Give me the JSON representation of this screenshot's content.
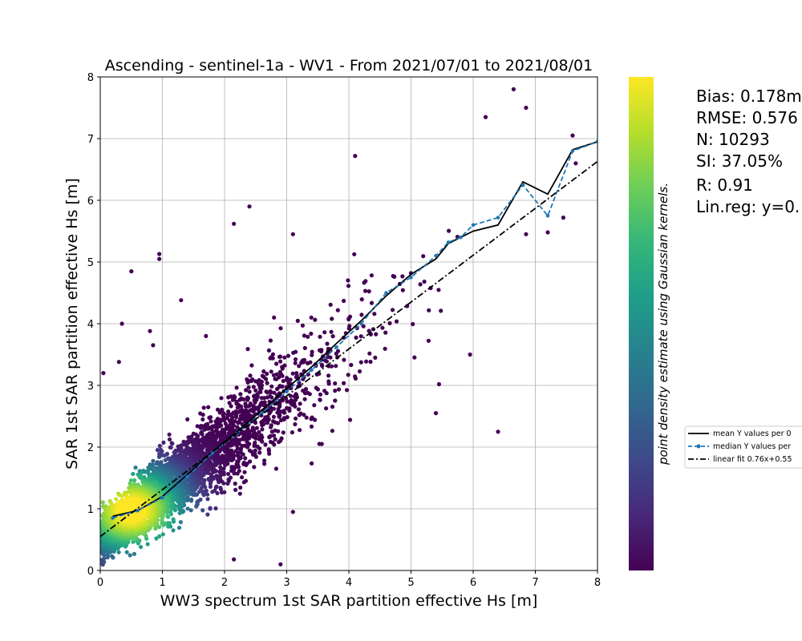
{
  "chart_data": {
    "type": "scatter",
    "title": "Ascending - sentinel-1a - WV1 - From 2021/07/01 to 2021/08/01",
    "xlabel": "WW3 spectrum 1st SAR partition effective Hs [m]",
    "ylabel": "SAR 1st SAR partition effective Hs [m]",
    "xlim": [
      0,
      8
    ],
    "ylim": [
      0,
      8
    ],
    "xticks": [
      "0",
      "1",
      "2",
      "3",
      "4",
      "5",
      "6",
      "7",
      "8"
    ],
    "yticks": [
      "0",
      "1",
      "2",
      "3",
      "4",
      "5",
      "6",
      "7",
      "8"
    ],
    "grid": true,
    "colorbar_label": "point density estimate using Gaussian kernels.",
    "colormap": [
      "#440154",
      "#482878",
      "#3e4989",
      "#31688e",
      "#26828e",
      "#1f9e89",
      "#35b779",
      "#6ece58",
      "#b5de2b",
      "#fde725"
    ],
    "stats_lines": [
      "Bias: 0.178m",
      "RMSE: 0.576",
      "N: 10293",
      "SI: 37.05%",
      "R: 0.91",
      "Lin.reg: y=0."
    ],
    "legend_position": "right",
    "legend": [
      {
        "label": "mean Y values per 0",
        "color": "#000000",
        "style": "solid"
      },
      {
        "label": "median Y values per",
        "color": "#1f77b4",
        "style": "dashed-marker"
      },
      {
        "label": "linear fit 0.76x+0.55",
        "color": "#000000",
        "style": "dashdot"
      }
    ],
    "series": [
      {
        "name": "mean Y values per 0",
        "color": "#000000",
        "x": [
          0.2,
          0.6,
          1.0,
          1.4,
          1.8,
          2.2,
          2.6,
          3.0,
          3.4,
          3.8,
          4.2,
          4.6,
          5.0,
          5.4,
          5.6,
          5.8,
          6.0,
          6.4,
          6.8,
          7.2,
          7.6,
          8.0
        ],
        "y": [
          0.88,
          0.97,
          1.2,
          1.55,
          1.92,
          2.25,
          2.6,
          2.95,
          3.3,
          3.68,
          4.05,
          4.45,
          4.8,
          5.05,
          5.3,
          5.4,
          5.5,
          5.6,
          6.3,
          6.1,
          6.82,
          6.95
        ]
      },
      {
        "name": "median Y values per",
        "color": "#1f77b4",
        "x": [
          0.2,
          0.6,
          1.0,
          1.4,
          1.8,
          2.2,
          2.6,
          3.0,
          3.4,
          3.8,
          4.2,
          4.6,
          5.0,
          5.4,
          5.6,
          5.8,
          6.0,
          6.4,
          6.8,
          7.2,
          7.6,
          8.0
        ],
        "y": [
          0.85,
          0.97,
          1.18,
          1.52,
          1.9,
          2.22,
          2.55,
          2.9,
          3.25,
          3.62,
          4.0,
          4.5,
          4.75,
          5.1,
          5.32,
          5.4,
          5.6,
          5.72,
          6.25,
          5.75,
          6.8,
          6.95
        ]
      },
      {
        "name": "linear fit 0.76x+0.55",
        "color": "#000000",
        "x": [
          0,
          8
        ],
        "y": [
          0.55,
          6.63
        ]
      }
    ],
    "scatter_cloud": {
      "n_rendered": 4200,
      "center_x": 0.5,
      "center_y": 0.98,
      "outliers": [
        [
          0.5,
          4.85
        ],
        [
          0.95,
          5.05
        ],
        [
          0.95,
          5.13
        ],
        [
          1.3,
          4.38
        ],
        [
          2.15,
          5.62
        ],
        [
          2.4,
          5.9
        ],
        [
          3.1,
          5.45
        ],
        [
          2.9,
          0.1
        ],
        [
          2.15,
          0.18
        ],
        [
          3.1,
          0.95
        ],
        [
          4.1,
          6.72
        ],
        [
          6.4,
          2.25
        ],
        [
          5.4,
          2.55
        ],
        [
          6.65,
          7.8
        ],
        [
          6.85,
          7.5
        ],
        [
          6.2,
          7.35
        ],
        [
          7.6,
          7.05
        ],
        [
          7.65,
          6.6
        ],
        [
          7.2,
          5.48
        ],
        [
          6.85,
          5.45
        ],
        [
          7.45,
          5.72
        ],
        [
          5.95,
          3.5
        ],
        [
          5.45,
          3.02
        ],
        [
          0.35,
          4.0
        ],
        [
          0.3,
          3.38
        ],
        [
          0.05,
          3.2
        ],
        [
          0.8,
          3.88
        ],
        [
          0.85,
          3.65
        ],
        [
          1.7,
          3.8
        ]
      ]
    }
  }
}
